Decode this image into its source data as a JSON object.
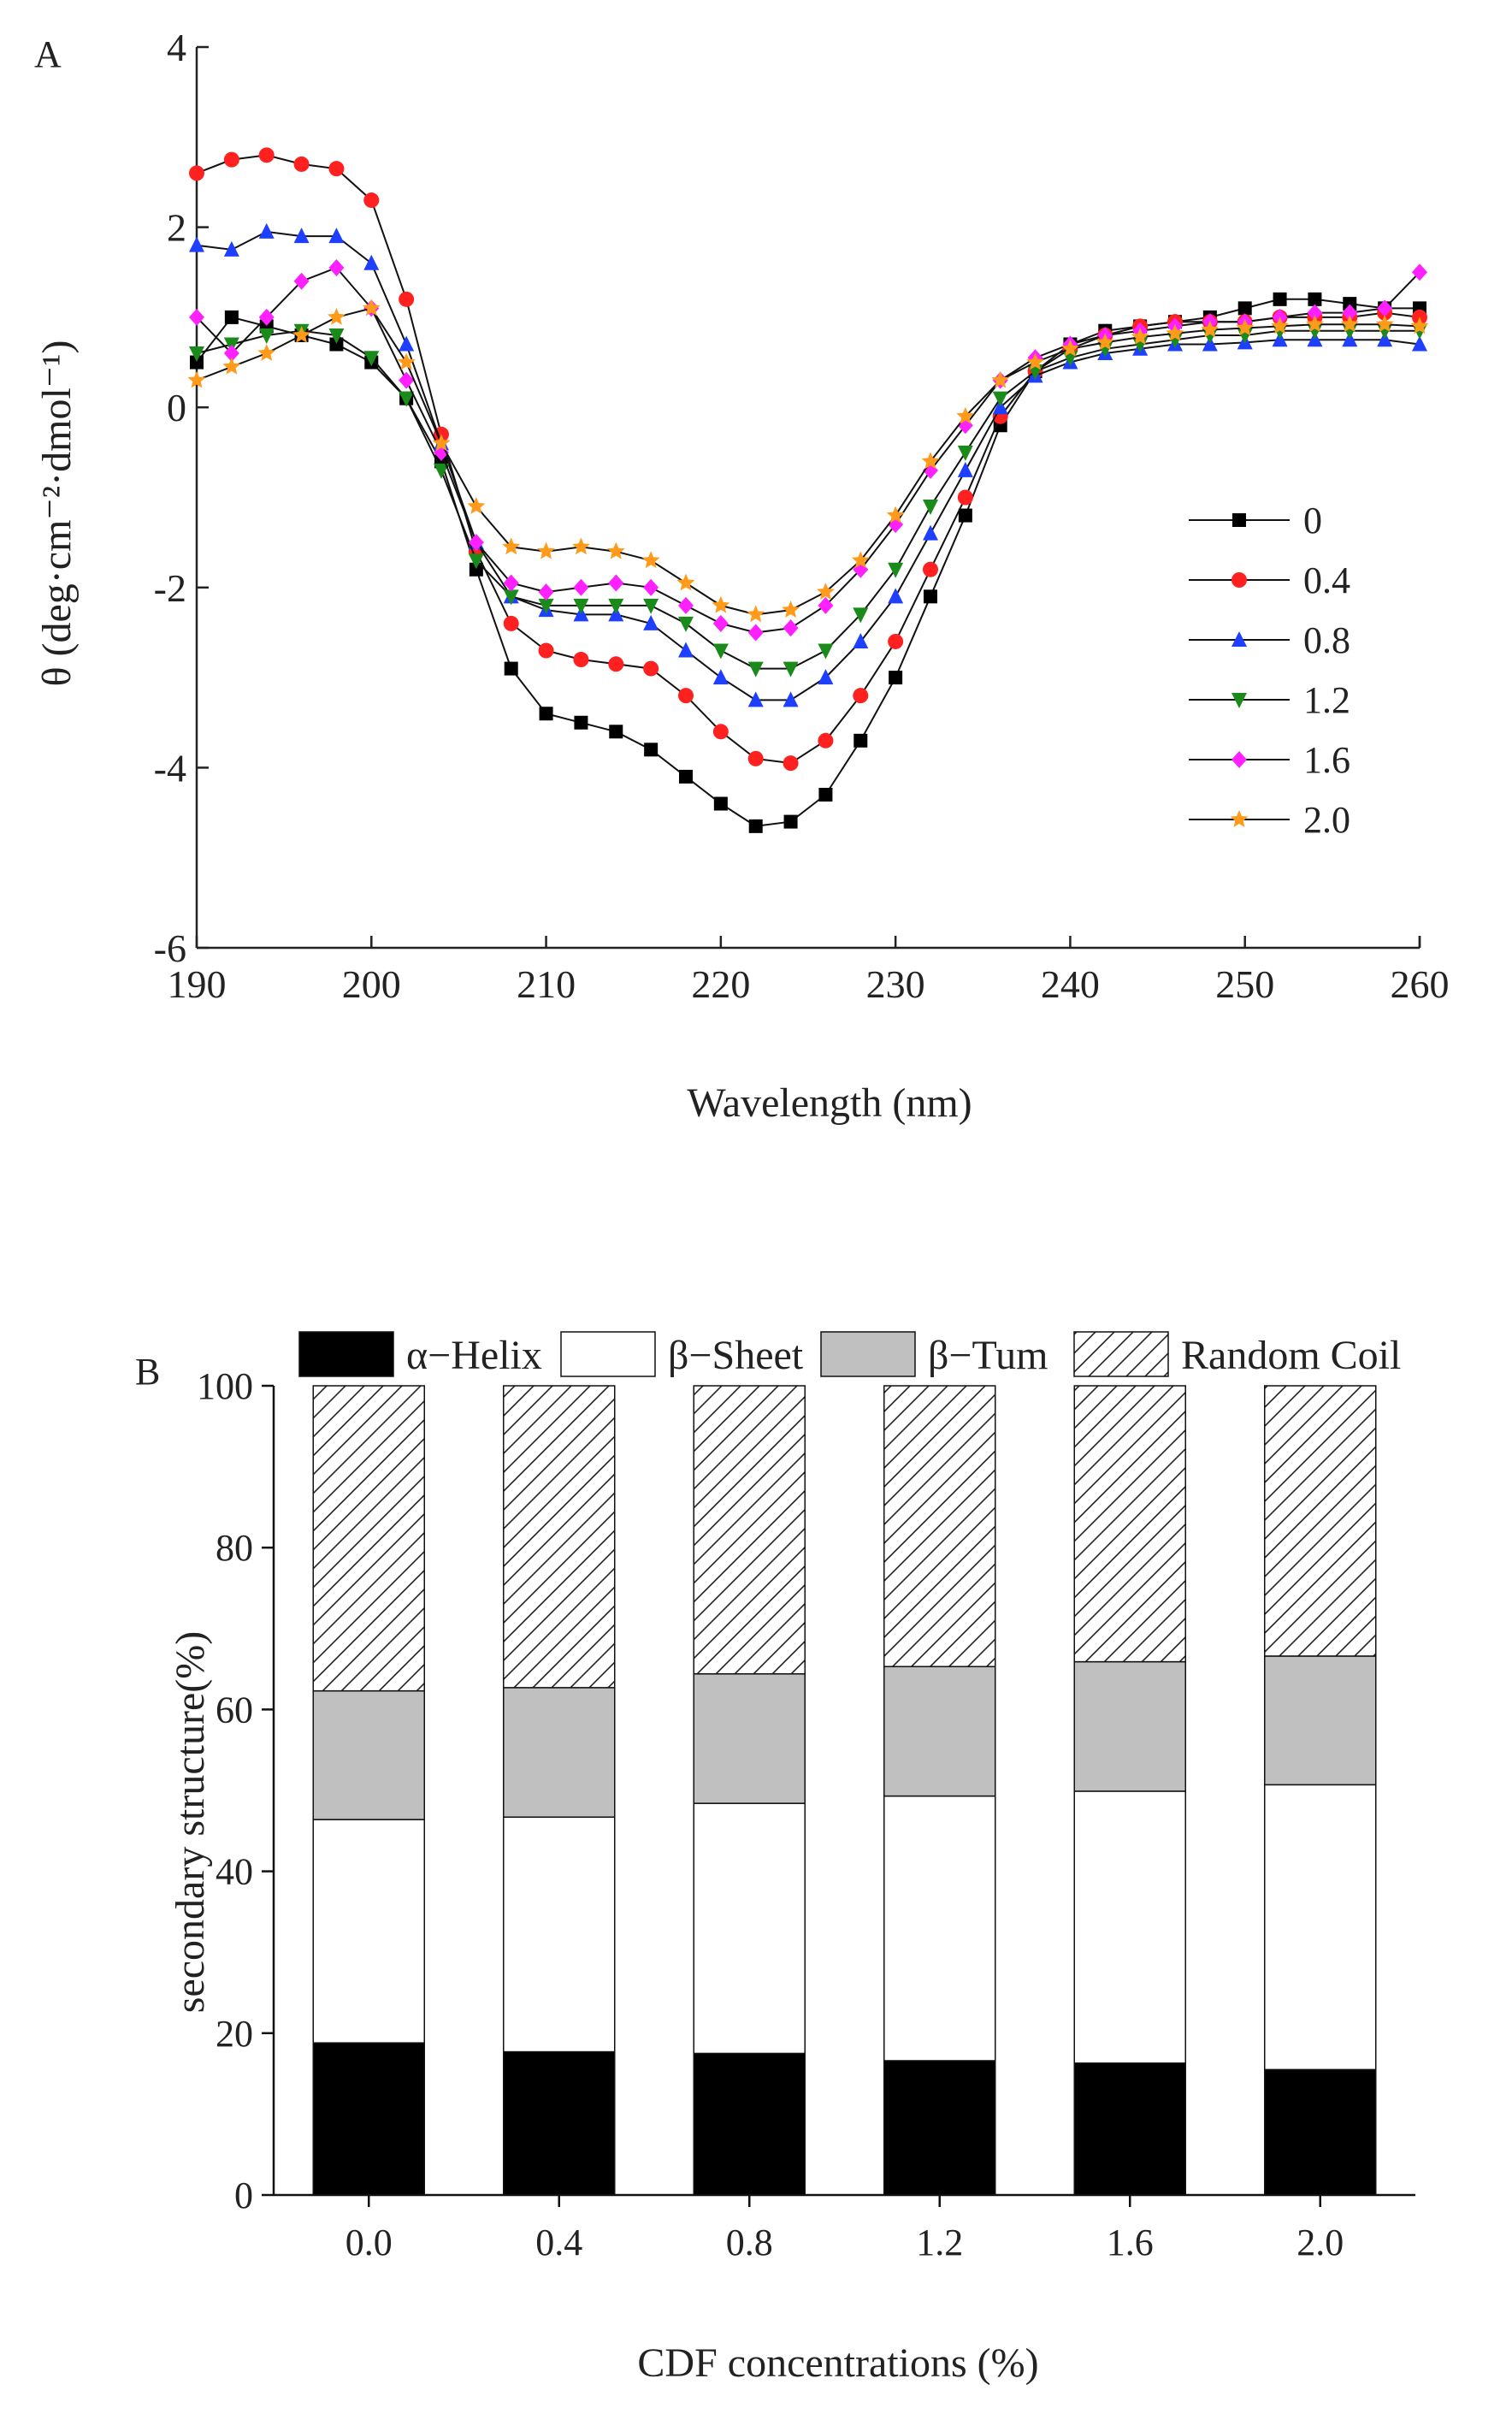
{
  "chart_data": [
    {
      "panel_label": "A",
      "type": "line",
      "title": "",
      "xlabel": "Wavelength (nm)",
      "ylabel": "θ (deg·cm⁻²·dmol⁻¹)",
      "xlim": [
        190,
        260
      ],
      "ylim": [
        -6,
        4
      ],
      "xticks": [
        "190",
        "200",
        "210",
        "220",
        "230",
        "240",
        "250",
        "260"
      ],
      "yticks": [
        "-6",
        "-4",
        "-2",
        "0",
        "2",
        "4"
      ],
      "legend_position": "right",
      "x": [
        190,
        192,
        194,
        196,
        198,
        200,
        202,
        204,
        206,
        208,
        210,
        212,
        214,
        216,
        218,
        220,
        222,
        224,
        226,
        228,
        230,
        232,
        234,
        236,
        238,
        240,
        242,
        244,
        246,
        248,
        250,
        252,
        254,
        256,
        258,
        260
      ],
      "series": [
        {
          "name": "0",
          "color": "#000000",
          "marker": "square",
          "values": [
            0.5,
            1.0,
            0.9,
            0.8,
            0.7,
            0.5,
            0.1,
            -0.6,
            -1.8,
            -2.9,
            -3.4,
            -3.5,
            -3.6,
            -3.8,
            -4.1,
            -4.4,
            -4.65,
            -4.6,
            -4.3,
            -3.7,
            -3.0,
            -2.1,
            -1.2,
            -0.2,
            0.4,
            0.7,
            0.85,
            0.9,
            0.95,
            1.0,
            1.1,
            1.2,
            1.2,
            1.15,
            1.1,
            1.1
          ]
        },
        {
          "name": "0.4",
          "color": "#ff2020",
          "marker": "circle",
          "values": [
            2.6,
            2.75,
            2.8,
            2.7,
            2.65,
            2.3,
            1.2,
            -0.3,
            -1.6,
            -2.4,
            -2.7,
            -2.8,
            -2.85,
            -2.9,
            -3.2,
            -3.6,
            -3.9,
            -3.95,
            -3.7,
            -3.2,
            -2.6,
            -1.8,
            -1.0,
            -0.1,
            0.4,
            0.65,
            0.8,
            0.9,
            0.95,
            0.95,
            0.95,
            1.0,
            1.0,
            1.0,
            1.05,
            1.0
          ]
        },
        {
          "name": "0.8",
          "color": "#1f3fff",
          "marker": "triangle-up",
          "values": [
            1.8,
            1.75,
            1.95,
            1.9,
            1.9,
            1.6,
            0.7,
            -0.4,
            -1.5,
            -2.1,
            -2.25,
            -2.3,
            -2.3,
            -2.4,
            -2.7,
            -3.0,
            -3.25,
            -3.25,
            -3.0,
            -2.6,
            -2.1,
            -1.4,
            -0.7,
            0.0,
            0.35,
            0.5,
            0.6,
            0.65,
            0.7,
            0.7,
            0.72,
            0.75,
            0.75,
            0.75,
            0.75,
            0.7
          ]
        },
        {
          "name": "1.2",
          "color": "#1a8a1a",
          "marker": "triangle-down",
          "values": [
            0.6,
            0.7,
            0.8,
            0.85,
            0.8,
            0.55,
            0.1,
            -0.7,
            -1.7,
            -2.1,
            -2.2,
            -2.2,
            -2.2,
            -2.2,
            -2.4,
            -2.7,
            -2.9,
            -2.9,
            -2.7,
            -2.3,
            -1.8,
            -1.1,
            -0.5,
            0.1,
            0.4,
            0.55,
            0.65,
            0.7,
            0.75,
            0.8,
            0.8,
            0.85,
            0.85,
            0.85,
            0.85,
            0.85
          ]
        },
        {
          "name": "1.6",
          "color": "#ff20ff",
          "marker": "diamond",
          "values": [
            1.0,
            0.6,
            1.0,
            1.4,
            1.55,
            1.1,
            0.3,
            -0.5,
            -1.5,
            -1.95,
            -2.05,
            -2.0,
            -1.95,
            -2.0,
            -2.2,
            -2.4,
            -2.5,
            -2.45,
            -2.2,
            -1.8,
            -1.3,
            -0.7,
            -0.2,
            0.3,
            0.55,
            0.7,
            0.8,
            0.85,
            0.9,
            0.95,
            0.95,
            1.0,
            1.05,
            1.05,
            1.1,
            1.5
          ]
        },
        {
          "name": "2.0",
          "color": "#ff9a1a",
          "marker": "star",
          "values": [
            0.3,
            0.45,
            0.6,
            0.8,
            1.0,
            1.1,
            0.5,
            -0.4,
            -1.1,
            -1.55,
            -1.6,
            -1.55,
            -1.6,
            -1.7,
            -1.95,
            -2.2,
            -2.3,
            -2.25,
            -2.05,
            -1.7,
            -1.2,
            -0.6,
            -0.1,
            0.3,
            0.5,
            0.65,
            0.72,
            0.78,
            0.82,
            0.86,
            0.88,
            0.9,
            0.92,
            0.92,
            0.92,
            0.9
          ]
        }
      ]
    },
    {
      "panel_label": "B",
      "type": "bar",
      "stacked": true,
      "title": "",
      "xlabel": "CDF concentrations (%)",
      "ylabel": "secondary structure(%)",
      "ylim": [
        0,
        100
      ],
      "yticks": [
        "0",
        "20",
        "40",
        "60",
        "80",
        "100"
      ],
      "categories": [
        "0.0",
        "0.4",
        "0.8",
        "1.2",
        "1.6",
        "2.0"
      ],
      "legend_position": "top",
      "series": [
        {
          "name": "α−Helix",
          "fill": "black",
          "values": [
            18.8,
            17.7,
            17.5,
            16.6,
            16.3,
            15.5
          ]
        },
        {
          "name": "β−Sheet",
          "fill": "white",
          "values": [
            27.6,
            29.0,
            30.9,
            32.7,
            33.6,
            35.2
          ]
        },
        {
          "name": "β−Tum",
          "fill": "gray",
          "values": [
            15.9,
            16.0,
            16.0,
            16.0,
            16.0,
            15.9
          ]
        },
        {
          "name": "Random Coil",
          "fill": "hatch",
          "values": [
            37.7,
            37.3,
            35.6,
            34.7,
            34.1,
            33.4
          ]
        }
      ]
    }
  ]
}
